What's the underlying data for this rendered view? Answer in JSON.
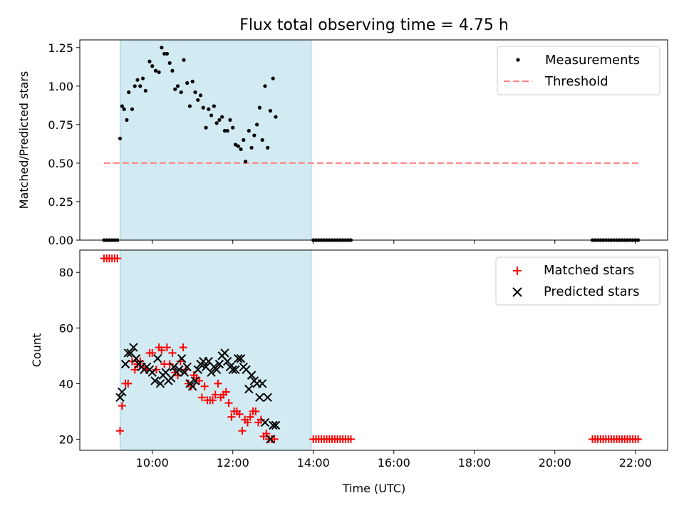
{
  "chart_data": [
    {
      "type": "scatter",
      "title": "Flux total observing time = 4.75 h",
      "ylabel": "Matched/Predicted stars",
      "xlabel": "",
      "xlim": [
        "08:12",
        "22:48"
      ],
      "ylim": [
        0,
        1.3
      ],
      "y_ticks": [
        "0.00",
        "0.25",
        "0.50",
        "0.75",
        "1.00",
        "1.25"
      ],
      "highlight_span": [
        "09:12",
        "13:57"
      ],
      "legend_placement": "top-right",
      "series": [
        {
          "name": "Measurements",
          "color": "#000000",
          "marker": "dot",
          "points": [
            [
              "08:48",
              0.0
            ],
            [
              "08:52",
              0.0
            ],
            [
              "08:56",
              0.0
            ],
            [
              "09:00",
              0.0
            ],
            [
              "09:04",
              0.0
            ],
            [
              "09:08",
              0.0
            ],
            [
              "09:12",
              0.66
            ],
            [
              "09:15",
              0.87
            ],
            [
              "09:18",
              0.85
            ],
            [
              "09:22",
              0.78
            ],
            [
              "09:25",
              0.96
            ],
            [
              "09:30",
              0.85
            ],
            [
              "09:34",
              1.0
            ],
            [
              "09:38",
              1.04
            ],
            [
              "09:42",
              1.0
            ],
            [
              "09:46",
              1.05
            ],
            [
              "09:50",
              0.97
            ],
            [
              "09:56",
              1.16
            ],
            [
              "10:00",
              1.13
            ],
            [
              "10:05",
              1.1
            ],
            [
              "10:10",
              1.09
            ],
            [
              "10:14",
              1.25
            ],
            [
              "10:18",
              1.21
            ],
            [
              "10:22",
              1.21
            ],
            [
              "10:26",
              1.15
            ],
            [
              "10:30",
              1.1
            ],
            [
              "10:34",
              0.98
            ],
            [
              "10:38",
              1.0
            ],
            [
              "10:43",
              0.96
            ],
            [
              "10:47",
              1.17
            ],
            [
              "10:52",
              1.02
            ],
            [
              "10:56",
              0.87
            ],
            [
              "11:00",
              1.03
            ],
            [
              "11:04",
              0.96
            ],
            [
              "11:08",
              0.91
            ],
            [
              "11:12",
              0.94
            ],
            [
              "11:16",
              0.86
            ],
            [
              "11:20",
              0.73
            ],
            [
              "11:24",
              0.85
            ],
            [
              "11:28",
              0.81
            ],
            [
              "11:32",
              0.87
            ],
            [
              "11:36",
              0.76
            ],
            [
              "11:40",
              0.78
            ],
            [
              "11:44",
              0.8
            ],
            [
              "11:48",
              0.71
            ],
            [
              "11:52",
              0.71
            ],
            [
              "11:56",
              0.78
            ],
            [
              "12:00",
              0.73
            ],
            [
              "12:04",
              0.62
            ],
            [
              "12:08",
              0.61
            ],
            [
              "12:12",
              0.59
            ],
            [
              "12:16",
              0.65
            ],
            [
              "12:19",
              0.51
            ],
            [
              "12:24",
              0.71
            ],
            [
              "12:28",
              0.6
            ],
            [
              "12:32",
              0.68
            ],
            [
              "12:36",
              0.75
            ],
            [
              "12:40",
              0.86
            ],
            [
              "12:44",
              0.65
            ],
            [
              "12:48",
              1.0
            ],
            [
              "12:52",
              0.6
            ],
            [
              "12:56",
              0.84
            ],
            [
              "13:00",
              1.05
            ],
            [
              "13:04",
              0.8
            ],
            [
              "14:00",
              0.0
            ],
            [
              "14:04",
              0.0
            ],
            [
              "14:08",
              0.0
            ],
            [
              "14:12",
              0.0
            ],
            [
              "14:16",
              0.0
            ],
            [
              "14:20",
              0.0
            ],
            [
              "14:24",
              0.0
            ],
            [
              "14:28",
              0.0
            ],
            [
              "14:32",
              0.0
            ],
            [
              "14:36",
              0.0
            ],
            [
              "14:40",
              0.0
            ],
            [
              "14:44",
              0.0
            ],
            [
              "14:48",
              0.0
            ],
            [
              "14:52",
              0.0
            ],
            [
              "14:56",
              0.0
            ],
            [
              "20:56",
              0.0
            ],
            [
              "21:00",
              0.0
            ],
            [
              "21:04",
              0.0
            ],
            [
              "21:08",
              0.0
            ],
            [
              "21:12",
              0.0
            ],
            [
              "21:16",
              0.0
            ],
            [
              "21:20",
              0.0
            ],
            [
              "21:24",
              0.0
            ],
            [
              "21:28",
              0.0
            ],
            [
              "21:32",
              0.0
            ],
            [
              "21:36",
              0.0
            ],
            [
              "21:40",
              0.0
            ],
            [
              "21:44",
              0.0
            ],
            [
              "21:48",
              0.0
            ],
            [
              "21:52",
              0.0
            ],
            [
              "21:56",
              0.0
            ],
            [
              "22:00",
              0.0
            ],
            [
              "22:04",
              0.0
            ]
          ]
        },
        {
          "name": "Threshold",
          "color": "#ff7f7f",
          "style": "dashed",
          "points": [
            [
              "08:48",
              0.5
            ],
            [
              "22:06",
              0.5
            ]
          ]
        }
      ]
    },
    {
      "type": "scatter",
      "title": "",
      "ylabel": "Count",
      "xlabel": "Time (UTC)",
      "xlim": [
        "08:12",
        "22:48"
      ],
      "ylim": [
        16,
        88
      ],
      "y_ticks": [
        "20",
        "40",
        "60",
        "80"
      ],
      "x_ticks": [
        "10:00",
        "12:00",
        "14:00",
        "16:00",
        "18:00",
        "20:00",
        "22:00"
      ],
      "highlight_span": [
        "09:12",
        "13:57"
      ],
      "legend_placement": "top-right",
      "series": [
        {
          "name": "Matched stars",
          "color": "#ff0000",
          "marker": "plus",
          "points": [
            [
              "08:48",
              85
            ],
            [
              "08:52",
              85
            ],
            [
              "08:56",
              85
            ],
            [
              "09:00",
              85
            ],
            [
              "09:04",
              85
            ],
            [
              "09:08",
              85
            ],
            [
              "09:12",
              23
            ],
            [
              "09:15",
              32
            ],
            [
              "09:20",
              40
            ],
            [
              "09:24",
              40
            ],
            [
              "09:30",
              48
            ],
            [
              "09:34",
              45
            ],
            [
              "09:38",
              47
            ],
            [
              "09:42",
              48
            ],
            [
              "09:46",
              46
            ],
            [
              "09:52",
              45
            ],
            [
              "09:56",
              51
            ],
            [
              "10:00",
              51
            ],
            [
              "10:06",
              45
            ],
            [
              "10:10",
              53
            ],
            [
              "10:14",
              52
            ],
            [
              "10:18",
              47
            ],
            [
              "10:22",
              53
            ],
            [
              "10:26",
              47
            ],
            [
              "10:30",
              51
            ],
            [
              "10:34",
              44
            ],
            [
              "10:38",
              43
            ],
            [
              "10:42",
              48
            ],
            [
              "10:46",
              53
            ],
            [
              "10:50",
              45
            ],
            [
              "10:54",
              40
            ],
            [
              "10:58",
              39
            ],
            [
              "11:02",
              43
            ],
            [
              "11:06",
              42
            ],
            [
              "11:10",
              41
            ],
            [
              "11:14",
              35
            ],
            [
              "11:18",
              39
            ],
            [
              "11:22",
              34
            ],
            [
              "11:26",
              34
            ],
            [
              "11:30",
              34
            ],
            [
              "11:34",
              36
            ],
            [
              "11:38",
              40
            ],
            [
              "11:42",
              35
            ],
            [
              "11:46",
              36
            ],
            [
              "11:50",
              37
            ],
            [
              "11:54",
              33
            ],
            [
              "11:58",
              28
            ],
            [
              "12:02",
              30
            ],
            [
              "12:06",
              30
            ],
            [
              "12:10",
              29
            ],
            [
              "12:14",
              23
            ],
            [
              "12:18",
              27
            ],
            [
              "12:22",
              26
            ],
            [
              "12:26",
              28
            ],
            [
              "12:30",
              30
            ],
            [
              "12:34",
              30
            ],
            [
              "12:38",
              26
            ],
            [
              "12:42",
              27
            ],
            [
              "12:46",
              21
            ],
            [
              "12:50",
              22
            ],
            [
              "12:54",
              20
            ],
            [
              "12:58",
              20
            ],
            [
              "13:02",
              20
            ],
            [
              "14:00",
              20
            ],
            [
              "14:04",
              20
            ],
            [
              "14:08",
              20
            ],
            [
              "14:12",
              20
            ],
            [
              "14:16",
              20
            ],
            [
              "14:20",
              20
            ],
            [
              "14:24",
              20
            ],
            [
              "14:28",
              20
            ],
            [
              "14:32",
              20
            ],
            [
              "14:36",
              20
            ],
            [
              "14:40",
              20
            ],
            [
              "14:44",
              20
            ],
            [
              "14:48",
              20
            ],
            [
              "14:52",
              20
            ],
            [
              "14:56",
              20
            ],
            [
              "20:56",
              20
            ],
            [
              "21:00",
              20
            ],
            [
              "21:04",
              20
            ],
            [
              "21:08",
              20
            ],
            [
              "21:12",
              20
            ],
            [
              "21:16",
              20
            ],
            [
              "21:20",
              20
            ],
            [
              "21:24",
              20
            ],
            [
              "21:28",
              20
            ],
            [
              "21:32",
              20
            ],
            [
              "21:36",
              20
            ],
            [
              "21:40",
              20
            ],
            [
              "21:44",
              20
            ],
            [
              "21:48",
              20
            ],
            [
              "21:52",
              20
            ],
            [
              "21:56",
              20
            ],
            [
              "22:00",
              20
            ],
            [
              "22:04",
              20
            ]
          ]
        },
        {
          "name": "Predicted stars",
          "color": "#000000",
          "marker": "x",
          "points": [
            [
              "09:12",
              35
            ],
            [
              "09:15",
              37
            ],
            [
              "09:20",
              47
            ],
            [
              "09:24",
              51
            ],
            [
              "09:28",
              51
            ],
            [
              "09:32",
              53
            ],
            [
              "09:36",
              49
            ],
            [
              "09:40",
              47
            ],
            [
              "09:44",
              46
            ],
            [
              "09:48",
              45
            ],
            [
              "09:52",
              46
            ],
            [
              "09:56",
              45
            ],
            [
              "10:00",
              44
            ],
            [
              "10:04",
              41
            ],
            [
              "10:08",
              49
            ],
            [
              "10:12",
              40
            ],
            [
              "10:16",
              43
            ],
            [
              "10:20",
              44
            ],
            [
              "10:24",
              41
            ],
            [
              "10:28",
              42
            ],
            [
              "10:32",
              46
            ],
            [
              "10:36",
              44
            ],
            [
              "10:40",
              45
            ],
            [
              "10:44",
              49
            ],
            [
              "10:48",
              44
            ],
            [
              "10:52",
              46
            ],
            [
              "10:56",
              40
            ],
            [
              "11:00",
              39
            ],
            [
              "11:04",
              41
            ],
            [
              "11:08",
              45
            ],
            [
              "11:12",
              47
            ],
            [
              "11:16",
              48
            ],
            [
              "11:20",
              46
            ],
            [
              "11:24",
              48
            ],
            [
              "11:28",
              44
            ],
            [
              "11:32",
              46
            ],
            [
              "11:36",
              45
            ],
            [
              "11:40",
              47
            ],
            [
              "11:44",
              50
            ],
            [
              "11:48",
              51
            ],
            [
              "11:52",
              48
            ],
            [
              "11:56",
              46
            ],
            [
              "12:00",
              45
            ],
            [
              "12:04",
              45
            ],
            [
              "12:08",
              49
            ],
            [
              "12:12",
              49
            ],
            [
              "12:16",
              46
            ],
            [
              "12:20",
              45
            ],
            [
              "12:24",
              38
            ],
            [
              "12:28",
              43
            ],
            [
              "12:32",
              41
            ],
            [
              "12:36",
              40
            ],
            [
              "12:40",
              35
            ],
            [
              "12:44",
              40
            ],
            [
              "12:48",
              26
            ],
            [
              "12:52",
              35
            ],
            [
              "12:56",
              20
            ],
            [
              "13:00",
              25
            ],
            [
              "13:04",
              25
            ]
          ]
        }
      ]
    }
  ]
}
